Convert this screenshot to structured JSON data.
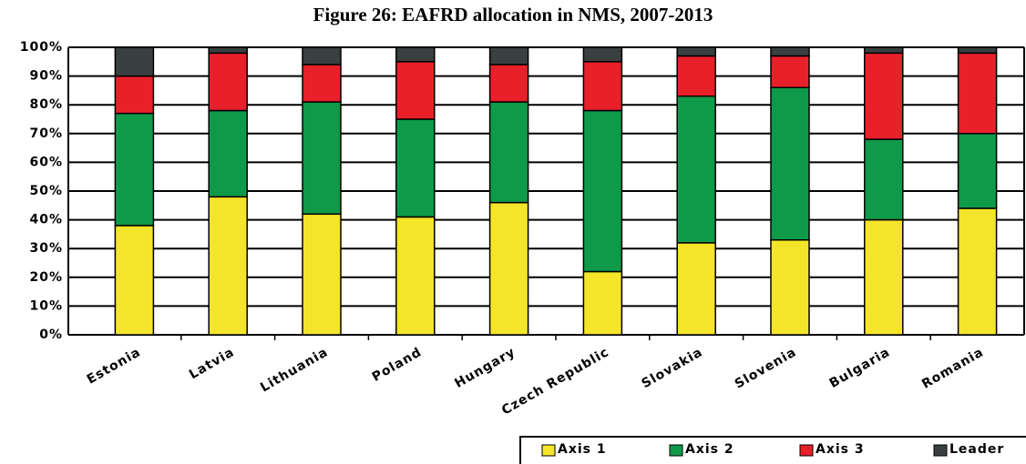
{
  "chart_data": {
    "type": "stacked_bar",
    "title": "Figure 26: EAFRD allocation in NMS, 2007-2013",
    "categories": [
      "Estonia",
      "Latvia",
      "Lithuania",
      "Poland",
      "Hungary",
      "Czech Republic",
      "Slovakia",
      "Slovenia",
      "Bulgaria",
      "Romania"
    ],
    "series": [
      {
        "name": "Axis 1",
        "color": "#f5e52a",
        "values": [
          38,
          48,
          42,
          41,
          46,
          22,
          32,
          33,
          40,
          44
        ]
      },
      {
        "name": "Axis 2",
        "color": "#0f9a4a",
        "values": [
          39,
          30,
          39,
          34,
          35,
          56,
          51,
          53,
          28,
          26
        ]
      },
      {
        "name": "Axis 3",
        "color": "#e8202a",
        "values": [
          13,
          20,
          13,
          20,
          13,
          17,
          14,
          11,
          30,
          28
        ]
      },
      {
        "name": "Leader",
        "color": "#3a3f3f",
        "values": [
          10,
          2,
          6,
          5,
          6,
          5,
          3,
          3,
          2,
          2
        ]
      }
    ],
    "ylim": [
      0,
      100
    ],
    "yticks": [
      {
        "value": 0,
        "label": "0%"
      },
      {
        "value": 10,
        "label": "10%"
      },
      {
        "value": 20,
        "label": "20%"
      },
      {
        "value": 30,
        "label": "30%"
      },
      {
        "value": 40,
        "label": "40%"
      },
      {
        "value": 50,
        "label": "50%"
      },
      {
        "value": 60,
        "label": "60%"
      },
      {
        "value": 70,
        "label": "70%"
      },
      {
        "value": 80,
        "label": "80%"
      },
      {
        "value": 90,
        "label": "90%"
      },
      {
        "value": 100,
        "label": "100%"
      }
    ],
    "grid": true,
    "legend": "bottom-right"
  }
}
